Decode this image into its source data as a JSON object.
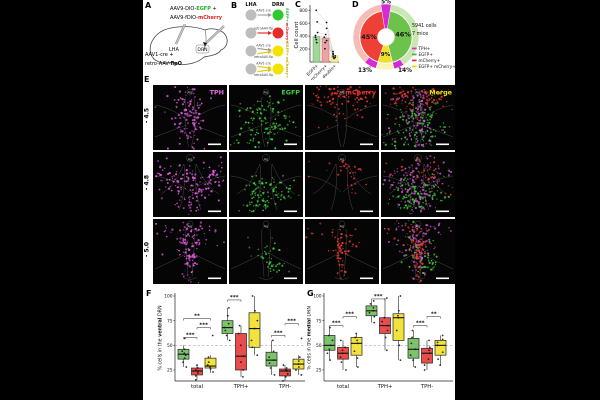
{
  "panel_a": {
    "label": "A",
    "virus1": {
      "pre": "AAV9-DIO-",
      "highlight": "EGFP",
      "post": " +",
      "highlight_color": "#1faf1f"
    },
    "virus2": {
      "pre": "AAV9-fDIO-",
      "highlight": "mCherry",
      "post": "",
      "highlight_color": "#e02020"
    },
    "lha": "LHA",
    "drn": "DRN",
    "inj1": "AAV1-cre +",
    "inj2_pre": "retro-AAV-",
    "inj2_bold": "flpO"
  },
  "panel_b": {
    "label": "B",
    "header_lha": "LHA",
    "header_drn": "DRN",
    "source_color": "#bdbdbd",
    "rows": [
      {
        "arrows": [
          {
            "label": "AAV1-cre",
            "color": "#9a9a9a"
          }
        ],
        "target_color": "#2ec92e"
      },
      {
        "arrows": [
          {
            "label": "retroAAV-flp",
            "color": "#e02020"
          }
        ],
        "target_color": "#e82a2a"
      },
      {
        "arrows": [
          {
            "label": "AAV1-cre",
            "color": "#9a9a9a"
          },
          {
            "label": "retroAAV-flp",
            "color": "#e3c400"
          }
        ],
        "target_color": "#f2e300"
      },
      {
        "arrows": [
          {
            "label": "AAV1-cre",
            "color": "#e3c400"
          },
          {
            "label": "retroAAV-flp",
            "color": "#e3c400"
          }
        ],
        "target_color": "#f2e300"
      }
    ],
    "side_labels": [
      {
        "text": "EGFP+",
        "color": "#1faf1f"
      },
      {
        "text": "mCherry+",
        "color": "#e02020"
      },
      {
        "text": "EGFP+ mCherry+",
        "color": "#c4a800"
      }
    ]
  },
  "panel_c": {
    "label": "C",
    "chart_data": {
      "type": "bar",
      "ylabel": "Cell count",
      "categories": [
        "EGFP+",
        "mCherry+",
        "double+"
      ],
      "bar_means": [
        390,
        370,
        95
      ],
      "bar_colors": [
        "#a3d69b",
        "#eda3a3",
        "#f6ee9d"
      ],
      "bar_edge_colors": [
        "#5aa84f",
        "#cc5555",
        "#cfc23a"
      ],
      "points": [
        [
          800,
          620,
          455,
          410,
          380,
          345,
          300
        ],
        [
          610,
          520,
          425,
          385,
          330,
          300,
          205
        ],
        [
          160,
          130,
          110,
          95,
          80,
          70,
          55
        ]
      ],
      "yticks": [
        200,
        400,
        600,
        800
      ],
      "ylim": [
        0,
        850
      ]
    }
  },
  "panel_d": {
    "label": "D",
    "count_line1": "5941 cells",
    "count_line2": "7 mice",
    "chart_data": {
      "type": "donut",
      "inner_segments": [
        {
          "label": "EGFP+",
          "value": 46,
          "color": "#6cc24a",
          "pct_label": "46%"
        },
        {
          "label": "EGFP+ mCherry+",
          "value": 9,
          "color": "#f0e02a",
          "pct_label": "9%"
        },
        {
          "label": "mCherry+",
          "value": 45,
          "color": "#ee4037",
          "pct_label": "45%"
        }
      ],
      "top_segment": {
        "label": "TPH+",
        "value": 5,
        "color": "#d42bd4",
        "pct_label": "5%"
      },
      "outer_overlaps": [
        {
          "label": "TPH+ within EGFP+",
          "pct_label": "14%",
          "color": "#d42bd4"
        },
        {
          "label": "TPH+ within mCherry+",
          "pct_label": "13%",
          "color": "#d42bd4"
        }
      ],
      "outer_colors": [
        "#c9e7b3",
        "#f9f4b8",
        "#f6bcb6"
      ]
    },
    "legend": [
      {
        "text": "TPH+",
        "color": "#d42bd4"
      },
      {
        "text": "EGFP+",
        "color": "#4fae32"
      },
      {
        "text": "mCherry+",
        "color": "#e62e2e"
      },
      {
        "text": "EGFP+ mCherry+",
        "color": "#e8d800"
      }
    ]
  },
  "panel_e": {
    "label": "E",
    "columns": [
      {
        "label": "TPH",
        "color": "#e46be4"
      },
      {
        "label": "EGFP",
        "color": "#3fd03f"
      },
      {
        "label": "mCherry",
        "color": "#f03030"
      },
      {
        "label": "Merge",
        "color": "#f2e300"
      }
    ],
    "rows": [
      {
        "label": "- 4.5"
      },
      {
        "label": "- 4.8"
      },
      {
        "label": "- 5.0"
      }
    ],
    "aq_label": "Aq"
  },
  "panel_f": {
    "label": "F",
    "chart_data": {
      "type": "box",
      "ylabel_pre": "% cells in the ",
      "ylabel_bold": "ventral",
      "ylabel_post": " DRN",
      "yticks": [
        25,
        50,
        75,
        100
      ],
      "ref_line": 50,
      "categories": [
        "total",
        "TPH+",
        "TPH-"
      ],
      "series_colors": [
        "#7cc36b",
        "#e84c4c",
        "#f2e33c"
      ],
      "groups": [
        {
          "category": "total",
          "boxes": [
            {
              "low": 28,
              "q1": 36,
              "med": 41,
              "q3": 46,
              "high": 50,
              "points": [
                28,
                33,
                37,
                40,
                42,
                44,
                46,
                57
              ]
            },
            {
              "low": 15,
              "q1": 20,
              "med": 24,
              "q3": 27,
              "high": 30,
              "points": [
                15,
                19,
                22,
                24,
                25,
                27,
                30
              ]
            },
            {
              "low": 22,
              "q1": 27,
              "med": 29,
              "q3": 37,
              "high": 40,
              "points": [
                23,
                26,
                28,
                30,
                33,
                38,
                60
              ]
            }
          ]
        },
        {
          "category": "TPH+",
          "boxes": [
            {
              "low": 55,
              "q1": 62,
              "med": 68,
              "q3": 75,
              "high": 88,
              "points": [
                55,
                60,
                65,
                68,
                72,
                80,
                88
              ]
            },
            {
              "low": 18,
              "q1": 25,
              "med": 39,
              "q3": 62,
              "high": 70,
              "points": [
                18,
                25,
                33,
                39,
                50,
                62,
                70
              ]
            },
            {
              "low": 40,
              "q1": 48,
              "med": 67,
              "q3": 83,
              "high": 100,
              "points": [
                40,
                48,
                55,
                67,
                75,
                85,
                100
              ]
            }
          ]
        },
        {
          "category": "TPH-",
          "boxes": [
            {
              "low": 20,
              "q1": 29,
              "med": 35,
              "q3": 43,
              "high": 55,
              "points": [
                20,
                27,
                32,
                35,
                38,
                44,
                55
              ]
            },
            {
              "low": 14,
              "q1": 19,
              "med": 24,
              "q3": 26,
              "high": 30,
              "points": [
                14,
                18,
                21,
                24,
                25,
                27,
                30
              ]
            },
            {
              "low": 20,
              "q1": 26,
              "med": 31,
              "q3": 36,
              "high": 40,
              "points": [
                20,
                25,
                28,
                31,
                34,
                38,
                57
              ]
            }
          ]
        }
      ],
      "significance": [
        {
          "group": 0,
          "a": 0,
          "b": 1,
          "y": 58,
          "stars": "***"
        },
        {
          "group": 0,
          "a": 1,
          "b": 2,
          "y": 68,
          "stars": "***"
        },
        {
          "group": 0,
          "a": 0,
          "b": 2,
          "y": 77,
          "stars": "**"
        },
        {
          "group": 1,
          "a": 0,
          "b": 1,
          "y": 96,
          "stars": "***"
        },
        {
          "group": 2,
          "a": 0,
          "b": 1,
          "y": 60,
          "stars": "***"
        },
        {
          "group": 2,
          "a": 1,
          "b": 2,
          "y": 72,
          "stars": "***"
        }
      ]
    }
  },
  "panel_g": {
    "label": "G",
    "chart_data": {
      "type": "box",
      "ylabel_pre": "% cells in the ",
      "ylabel_bold": "medial",
      "ylabel_post": " DRN",
      "yticks": [
        25,
        50,
        75,
        100
      ],
      "ref_line": 50,
      "categories": [
        "total",
        "TPH+",
        "TPH-"
      ],
      "series_colors": [
        "#7cc36b",
        "#e84c4c",
        "#f2e33c"
      ],
      "groups": [
        {
          "category": "total",
          "boxes": [
            {
              "low": 35,
              "q1": 45,
              "med": 50,
              "q3": 60,
              "high": 68,
              "points": [
                35,
                42,
                46,
                50,
                55,
                60,
                68
              ]
            },
            {
              "low": 25,
              "q1": 36,
              "med": 42,
              "q3": 48,
              "high": 55,
              "points": [
                25,
                33,
                38,
                42,
                45,
                48,
                55
              ]
            },
            {
              "low": 28,
              "q1": 40,
              "med": 52,
              "q3": 58,
              "high": 62,
              "points": [
                28,
                37,
                44,
                52,
                55,
                58,
                62
              ]
            }
          ]
        },
        {
          "category": "TPH+",
          "boxes": [
            {
              "low": 73,
              "q1": 80,
              "med": 85,
              "q3": 90,
              "high": 95,
              "points": [
                73,
                79,
                83,
                85,
                88,
                92,
                95
              ]
            },
            {
              "low": 45,
              "q1": 62,
              "med": 70,
              "q3": 78,
              "high": 98,
              "points": [
                45,
                58,
                65,
                70,
                74,
                78,
                98
              ]
            },
            {
              "low": 35,
              "q1": 55,
              "med": 78,
              "q3": 82,
              "high": 100,
              "points": [
                35,
                50,
                65,
                78,
                80,
                85,
                100
              ]
            }
          ]
        },
        {
          "category": "TPH-",
          "boxes": [
            {
              "low": 28,
              "q1": 37,
              "med": 46,
              "q3": 57,
              "high": 65,
              "points": [
                28,
                35,
                40,
                46,
                52,
                58,
                65
              ]
            },
            {
              "low": 25,
              "q1": 32,
              "med": 42,
              "q3": 47,
              "high": 55,
              "points": [
                25,
                30,
                36,
                42,
                45,
                48,
                55
              ]
            },
            {
              "low": 30,
              "q1": 40,
              "med": 50,
              "q3": 55,
              "high": 60,
              "points": [
                30,
                36,
                43,
                50,
                53,
                56,
                60
              ]
            }
          ]
        }
      ],
      "significance": [
        {
          "group": 0,
          "a": 0,
          "b": 1,
          "y": 70,
          "stars": "***"
        },
        {
          "group": 0,
          "a": 1,
          "b": 2,
          "y": 79,
          "stars": "***"
        },
        {
          "group": 1,
          "a": 0,
          "b": 1,
          "y": 97,
          "stars": "***"
        },
        {
          "group": 2,
          "a": 0,
          "b": 1,
          "y": 70,
          "stars": "***"
        },
        {
          "group": 2,
          "a": 1,
          "b": 2,
          "y": 79,
          "stars": "**"
        }
      ]
    }
  }
}
